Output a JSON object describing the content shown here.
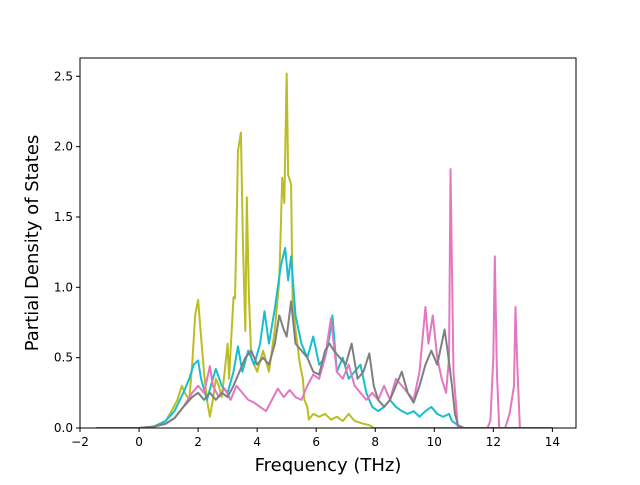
{
  "chart_data": {
    "type": "line",
    "title": "",
    "xlabel": "Frequency (THz)",
    "ylabel": "Partial Density of States",
    "xlim": [
      -2.0,
      14.8
    ],
    "ylim": [
      0.0,
      2.63
    ],
    "xticks": [
      -2,
      0,
      2,
      4,
      6,
      8,
      10,
      12,
      14
    ],
    "yticks": [
      0.0,
      0.5,
      1.0,
      1.5,
      2.0,
      2.5
    ],
    "xtick_labels": [
      "−2",
      "0",
      "2",
      "4",
      "6",
      "8",
      "10",
      "12",
      "14"
    ],
    "ytick_labels": [
      "0.0",
      "0.5",
      "1.0",
      "1.5",
      "2.0",
      "2.5"
    ],
    "grid": false,
    "legend": "none",
    "series": [
      {
        "color": "#bcbd22",
        "points": [
          [
            -1.45,
            0
          ],
          [
            0,
            0
          ],
          [
            0.5,
            0.01
          ],
          [
            0.9,
            0.05
          ],
          [
            1.1,
            0.12
          ],
          [
            1.3,
            0.2
          ],
          [
            1.45,
            0.3
          ],
          [
            1.55,
            0.25
          ],
          [
            1.7,
            0.2
          ],
          [
            1.8,
            0.45
          ],
          [
            1.9,
            0.8
          ],
          [
            2.0,
            0.91
          ],
          [
            2.1,
            0.65
          ],
          [
            2.2,
            0.4
          ],
          [
            2.3,
            0.2
          ],
          [
            2.4,
            0.08
          ],
          [
            2.5,
            0.2
          ],
          [
            2.6,
            0.35
          ],
          [
            2.7,
            0.3
          ],
          [
            2.8,
            0.22
          ],
          [
            2.9,
            0.4
          ],
          [
            3.0,
            0.6
          ],
          [
            3.05,
            0.35
          ],
          [
            3.1,
            0.55
          ],
          [
            3.2,
            0.93
          ],
          [
            3.25,
            0.92
          ],
          [
            3.3,
            1.4
          ],
          [
            3.35,
            1.97
          ],
          [
            3.45,
            2.1
          ],
          [
            3.52,
            1.3
          ],
          [
            3.6,
            0.69
          ],
          [
            3.65,
            1.64
          ],
          [
            3.72,
            0.95
          ],
          [
            3.8,
            0.5
          ],
          [
            3.9,
            0.45
          ],
          [
            4.0,
            0.4
          ],
          [
            4.2,
            0.55
          ],
          [
            4.4,
            0.4
          ],
          [
            4.6,
            0.7
          ],
          [
            4.75,
            1.05
          ],
          [
            4.85,
            1.78
          ],
          [
            4.92,
            1.6
          ],
          [
            5.0,
            2.52
          ],
          [
            5.05,
            1.8
          ],
          [
            5.15,
            1.73
          ],
          [
            5.2,
            0.9
          ],
          [
            5.3,
            0.7
          ],
          [
            5.45,
            0.45
          ],
          [
            5.55,
            0.35
          ],
          [
            5.6,
            0.2
          ],
          [
            5.7,
            0.15
          ],
          [
            5.75,
            0.06
          ],
          [
            5.9,
            0.1
          ],
          [
            6.1,
            0.08
          ],
          [
            6.3,
            0.1
          ],
          [
            6.5,
            0.06
          ],
          [
            6.7,
            0.08
          ],
          [
            6.9,
            0.05
          ],
          [
            7.1,
            0.1
          ],
          [
            7.3,
            0.05
          ],
          [
            7.6,
            0.03
          ],
          [
            7.8,
            0.02
          ],
          [
            7.95,
            0
          ],
          [
            8.2,
            0
          ],
          [
            9.3,
            0
          ],
          [
            14.0,
            0
          ]
        ]
      },
      {
        "color": "#17becf",
        "points": [
          [
            -1.45,
            0
          ],
          [
            0,
            0
          ],
          [
            0.5,
            0.01
          ],
          [
            0.9,
            0.05
          ],
          [
            1.2,
            0.12
          ],
          [
            1.5,
            0.25
          ],
          [
            1.7,
            0.35
          ],
          [
            1.85,
            0.45
          ],
          [
            2.0,
            0.48
          ],
          [
            2.1,
            0.35
          ],
          [
            2.3,
            0.2
          ],
          [
            2.5,
            0.35
          ],
          [
            2.6,
            0.42
          ],
          [
            2.8,
            0.3
          ],
          [
            3.0,
            0.25
          ],
          [
            3.2,
            0.4
          ],
          [
            3.35,
            0.58
          ],
          [
            3.5,
            0.4
          ],
          [
            3.7,
            0.55
          ],
          [
            3.9,
            0.45
          ],
          [
            4.1,
            0.6
          ],
          [
            4.25,
            0.83
          ],
          [
            4.4,
            0.6
          ],
          [
            4.6,
            0.85
          ],
          [
            4.8,
            1.15
          ],
          [
            4.95,
            1.28
          ],
          [
            5.05,
            1.05
          ],
          [
            5.15,
            1.22
          ],
          [
            5.3,
            0.8
          ],
          [
            5.5,
            0.6
          ],
          [
            5.7,
            0.5
          ],
          [
            5.9,
            0.65
          ],
          [
            6.1,
            0.45
          ],
          [
            6.3,
            0.5
          ],
          [
            6.45,
            0.65
          ],
          [
            6.55,
            0.8
          ],
          [
            6.7,
            0.4
          ],
          [
            6.9,
            0.5
          ],
          [
            7.1,
            0.35
          ],
          [
            7.3,
            0.4
          ],
          [
            7.5,
            0.45
          ],
          [
            7.7,
            0.25
          ],
          [
            7.9,
            0.15
          ],
          [
            8.1,
            0.12
          ],
          [
            8.3,
            0.15
          ],
          [
            8.5,
            0.2
          ],
          [
            8.7,
            0.15
          ],
          [
            8.9,
            0.12
          ],
          [
            9.1,
            0.1
          ],
          [
            9.3,
            0.12
          ],
          [
            9.5,
            0.08
          ],
          [
            9.7,
            0.12
          ],
          [
            9.9,
            0.15
          ],
          [
            10.1,
            0.1
          ],
          [
            10.3,
            0.08
          ],
          [
            10.5,
            0.1
          ],
          [
            10.6,
            0.05
          ],
          [
            10.8,
            0.02
          ],
          [
            11.0,
            0
          ],
          [
            14.0,
            0
          ]
        ]
      },
      {
        "color": "#e377c2",
        "points": [
          [
            -1.45,
            0
          ],
          [
            0,
            0
          ],
          [
            0.5,
            0.01
          ],
          [
            0.9,
            0.03
          ],
          [
            1.2,
            0.07
          ],
          [
            1.5,
            0.15
          ],
          [
            1.8,
            0.25
          ],
          [
            2.0,
            0.3
          ],
          [
            2.2,
            0.25
          ],
          [
            2.4,
            0.44
          ],
          [
            2.5,
            0.3
          ],
          [
            2.7,
            0.22
          ],
          [
            2.9,
            0.28
          ],
          [
            3.1,
            0.2
          ],
          [
            3.3,
            0.3
          ],
          [
            3.5,
            0.25
          ],
          [
            3.7,
            0.2
          ],
          [
            3.9,
            0.18
          ],
          [
            4.1,
            0.15
          ],
          [
            4.3,
            0.12
          ],
          [
            4.5,
            0.2
          ],
          [
            4.7,
            0.28
          ],
          [
            4.9,
            0.22
          ],
          [
            5.1,
            0.27
          ],
          [
            5.3,
            0.22
          ],
          [
            5.5,
            0.2
          ],
          [
            5.7,
            0.3
          ],
          [
            5.9,
            0.38
          ],
          [
            6.1,
            0.35
          ],
          [
            6.3,
            0.5
          ],
          [
            6.5,
            0.78
          ],
          [
            6.7,
            0.4
          ],
          [
            6.9,
            0.35
          ],
          [
            7.1,
            0.45
          ],
          [
            7.3,
            0.3
          ],
          [
            7.5,
            0.25
          ],
          [
            7.7,
            0.2
          ],
          [
            7.9,
            0.25
          ],
          [
            8.1,
            0.2
          ],
          [
            8.3,
            0.3
          ],
          [
            8.5,
            0.2
          ],
          [
            8.7,
            0.35
          ],
          [
            8.9,
            0.3
          ],
          [
            9.1,
            0.25
          ],
          [
            9.3,
            0.2
          ],
          [
            9.5,
            0.4
          ],
          [
            9.7,
            0.86
          ],
          [
            9.8,
            0.6
          ],
          [
            9.95,
            0.8
          ],
          [
            10.1,
            0.5
          ],
          [
            10.25,
            0.35
          ],
          [
            10.4,
            0.25
          ],
          [
            10.5,
            0.5
          ],
          [
            10.55,
            1.84
          ],
          [
            10.65,
            0.4
          ],
          [
            10.8,
            0
          ],
          [
            11.8,
            0
          ],
          [
            11.9,
            0.05
          ],
          [
            12.0,
            0.5
          ],
          [
            12.05,
            1.22
          ],
          [
            12.12,
            0.4
          ],
          [
            12.2,
            0
          ],
          [
            12.4,
            0
          ],
          [
            12.55,
            0.1
          ],
          [
            12.7,
            0.3
          ],
          [
            12.75,
            0.86
          ],
          [
            12.82,
            0.4
          ],
          [
            12.9,
            0
          ],
          [
            14.0,
            0
          ]
        ]
      },
      {
        "color": "#7f7f7f",
        "points": [
          [
            -1.45,
            0
          ],
          [
            0,
            0
          ],
          [
            0.5,
            0.01
          ],
          [
            0.9,
            0.03
          ],
          [
            1.2,
            0.07
          ],
          [
            1.5,
            0.15
          ],
          [
            1.8,
            0.22
          ],
          [
            2.0,
            0.25
          ],
          [
            2.2,
            0.2
          ],
          [
            2.4,
            0.25
          ],
          [
            2.6,
            0.2
          ],
          [
            2.8,
            0.25
          ],
          [
            3.0,
            0.22
          ],
          [
            3.2,
            0.3
          ],
          [
            3.4,
            0.4
          ],
          [
            3.6,
            0.5
          ],
          [
            3.8,
            0.55
          ],
          [
            4.0,
            0.45
          ],
          [
            4.2,
            0.5
          ],
          [
            4.4,
            0.45
          ],
          [
            4.6,
            0.6
          ],
          [
            4.75,
            0.8
          ],
          [
            4.9,
            0.7
          ],
          [
            5.0,
            0.65
          ],
          [
            5.15,
            0.9
          ],
          [
            5.3,
            0.6
          ],
          [
            5.5,
            0.55
          ],
          [
            5.7,
            0.5
          ],
          [
            5.9,
            0.4
          ],
          [
            6.1,
            0.38
          ],
          [
            6.3,
            0.55
          ],
          [
            6.45,
            0.6
          ],
          [
            6.6,
            0.55
          ],
          [
            6.8,
            0.5
          ],
          [
            7.0,
            0.45
          ],
          [
            7.2,
            0.6
          ],
          [
            7.4,
            0.35
          ],
          [
            7.6,
            0.4
          ],
          [
            7.8,
            0.53
          ],
          [
            7.95,
            0.3
          ],
          [
            8.1,
            0.2
          ],
          [
            8.3,
            0.15
          ],
          [
            8.5,
            0.2
          ],
          [
            8.7,
            0.3
          ],
          [
            8.9,
            0.4
          ],
          [
            9.1,
            0.25
          ],
          [
            9.3,
            0.18
          ],
          [
            9.5,
            0.3
          ],
          [
            9.7,
            0.45
          ],
          [
            9.9,
            0.55
          ],
          [
            10.1,
            0.45
          ],
          [
            10.25,
            0.6
          ],
          [
            10.35,
            0.7
          ],
          [
            10.45,
            0.55
          ],
          [
            10.6,
            0.3
          ],
          [
            10.7,
            0.1
          ],
          [
            10.8,
            0.02
          ],
          [
            11.0,
            0
          ],
          [
            14.0,
            0
          ]
        ]
      }
    ]
  }
}
